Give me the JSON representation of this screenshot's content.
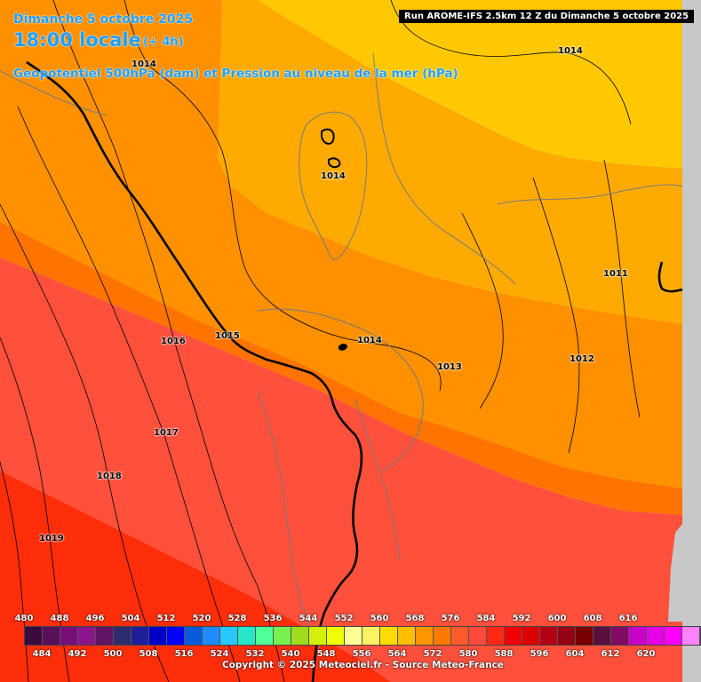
{
  "header": {
    "date_line": "Dimanche 5 octobre 2025",
    "time_line": "18:00 locale",
    "lead_time": "(+ 4h)",
    "variable": "Geopotentiel 500hPa (dam) et Pression au niveau de la mer (hPa)",
    "run_info": "Run AROME-IFS 2.5km 12 Z du Dimanche 5 octobre 2025"
  },
  "isobar_labels": [
    {
      "id": "1014-nw",
      "text": "1014"
    },
    {
      "id": "1014-ne",
      "text": "1014"
    },
    {
      "id": "1014-corsica",
      "text": "1014"
    },
    {
      "id": "1011",
      "text": "1011"
    },
    {
      "id": "1016",
      "text": "1016"
    },
    {
      "id": "1015",
      "text": "1015"
    },
    {
      "id": "1014-center",
      "text": "1014"
    },
    {
      "id": "1013",
      "text": "1013"
    },
    {
      "id": "1012",
      "text": "1012"
    },
    {
      "id": "1017",
      "text": "1017"
    },
    {
      "id": "1018",
      "text": "1018"
    },
    {
      "id": "1019",
      "text": "1019"
    }
  ],
  "legend": {
    "top_labels": [
      "480",
      "488",
      "496",
      "504",
      "512",
      "520",
      "528",
      "536",
      "544",
      "552",
      "560",
      "568",
      "576",
      "584",
      "592",
      "600",
      "608",
      "616"
    ],
    "bottom_labels": [
      "484",
      "492",
      "500",
      "508",
      "516",
      "524",
      "532",
      "540",
      "548",
      "556",
      "564",
      "572",
      "580",
      "588",
      "596",
      "604",
      "612",
      "620"
    ],
    "colors": [
      "#3c0a3c",
      "#5a0f5a",
      "#780f78",
      "#8c148c",
      "#641464",
      "#2c2c6e",
      "#1e1e9a",
      "#0000c8",
      "#0000ff",
      "#0a5adc",
      "#1e8cff",
      "#28c8ff",
      "#28e6c8",
      "#50ff96",
      "#78f050",
      "#a0dc1e",
      "#d2f00a",
      "#f0ff00",
      "#ffff96",
      "#fff064",
      "#ffdc00",
      "#ffbe00",
      "#ff9600",
      "#ff7800",
      "#ff5a28",
      "#ff4a3c",
      "#ff2814",
      "#f00000",
      "#dc0000",
      "#b40014",
      "#960014",
      "#780000",
      "#5a0f3c",
      "#820a64",
      "#c800c8",
      "#e600e6",
      "#ff00ff",
      "#ff82ff"
    ]
  },
  "copyright": "Copyright © 2025 Meteociel.fr - Source Meteo-France",
  "colors": {
    "title": "#1ea0ff",
    "band_552": "#ffc800",
    "band_556": "#ffaa00",
    "band_560": "#ff9000",
    "band_564": "#ff7300",
    "band_568": "#ff503c",
    "band_572": "#ff2e0a"
  }
}
